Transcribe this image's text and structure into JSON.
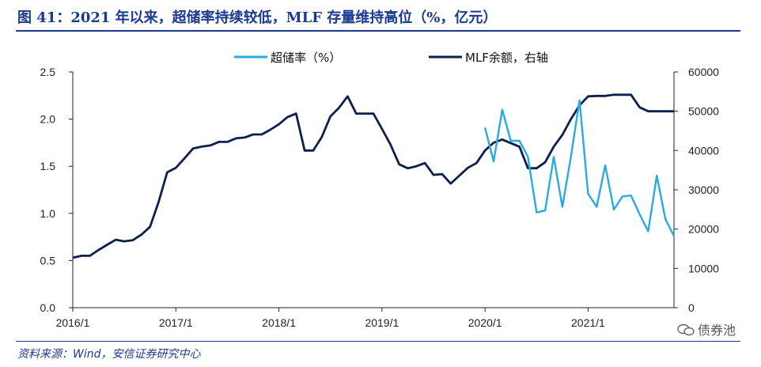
{
  "title": "图 41：2021 年以来，超储率持续较低，MLF 存量维持高位（%，亿元）",
  "source": "资料来源：Wind，安信证券研究中心",
  "watermark": "债券池",
  "colors": {
    "title": "#1a3a8f",
    "excess_reserve": "#29abe2",
    "mlf": "#0d1f4f",
    "axis": "#222222"
  },
  "chart_data": {
    "type": "line",
    "x_tick_labels": [
      "2016/1",
      "2017/1",
      "2018/1",
      "2019/1",
      "2020/1",
      "2021/1"
    ],
    "x_tick_months": [
      0,
      12,
      24,
      36,
      48,
      60
    ],
    "x_range_months": [
      0,
      70
    ],
    "y_left": {
      "min": 0,
      "max": 2.5,
      "ticks": [
        "0.0",
        "0.5",
        "1.0",
        "1.5",
        "2.0",
        "2.5"
      ]
    },
    "y_right": {
      "min": 0,
      "max": 60000,
      "ticks": [
        "0",
        "10000",
        "20000",
        "30000",
        "40000",
        "50000",
        "60000"
      ]
    },
    "legend_position": "top",
    "series": [
      {
        "name": "超储率（%）",
        "axis": "left",
        "points": [
          [
            48,
            1.91
          ],
          [
            49,
            1.55
          ],
          [
            50,
            2.1
          ],
          [
            51,
            1.77
          ],
          [
            52,
            1.77
          ],
          [
            53,
            1.6
          ],
          [
            54,
            1.01
          ],
          [
            55,
            1.03
          ],
          [
            56,
            1.6
          ],
          [
            57,
            1.07
          ],
          [
            58,
            1.6
          ],
          [
            59,
            2.2
          ],
          [
            60,
            1.21
          ],
          [
            61,
            1.07
          ],
          [
            62,
            1.51
          ],
          [
            63,
            1.04
          ],
          [
            64,
            1.18
          ],
          [
            65,
            1.19
          ],
          [
            66,
            0.99
          ],
          [
            67,
            0.81
          ],
          [
            68,
            1.4
          ],
          [
            69,
            0.94
          ],
          [
            70,
            0.76
          ]
        ]
      },
      {
        "name": "MLF余额，右轴",
        "axis": "right",
        "points": [
          [
            0,
            12700
          ],
          [
            1,
            13200
          ],
          [
            2,
            13200
          ],
          [
            3,
            14700
          ],
          [
            4,
            16000
          ],
          [
            5,
            17300
          ],
          [
            6,
            16900
          ],
          [
            7,
            17200
          ],
          [
            8,
            18600
          ],
          [
            9,
            20600
          ],
          [
            10,
            27000
          ],
          [
            11,
            34500
          ],
          [
            12,
            35600
          ],
          [
            13,
            38000
          ],
          [
            14,
            40500
          ],
          [
            15,
            41000
          ],
          [
            16,
            41300
          ],
          [
            17,
            42200
          ],
          [
            18,
            42200
          ],
          [
            19,
            43100
          ],
          [
            20,
            43300
          ],
          [
            21,
            44100
          ],
          [
            22,
            44100
          ],
          [
            23,
            45300
          ],
          [
            24,
            46700
          ],
          [
            25,
            48500
          ],
          [
            26,
            49400
          ],
          [
            27,
            40000
          ],
          [
            28,
            40000
          ],
          [
            29,
            43500
          ],
          [
            30,
            48700
          ],
          [
            31,
            50900
          ],
          [
            32,
            53800
          ],
          [
            33,
            49400
          ],
          [
            34,
            49400
          ],
          [
            35,
            49400
          ],
          [
            36,
            45500
          ],
          [
            37,
            41500
          ],
          [
            38,
            36500
          ],
          [
            39,
            35500
          ],
          [
            40,
            36000
          ],
          [
            41,
            36800
          ],
          [
            42,
            33800
          ],
          [
            43,
            34000
          ],
          [
            44,
            31600
          ],
          [
            45,
            33600
          ],
          [
            46,
            35600
          ],
          [
            47,
            36800
          ],
          [
            48,
            40000
          ],
          [
            49,
            42000
          ],
          [
            50,
            42800
          ],
          [
            51,
            41900
          ],
          [
            52,
            41000
          ],
          [
            53,
            35500
          ],
          [
            54,
            35500
          ],
          [
            55,
            37000
          ],
          [
            56,
            41000
          ],
          [
            57,
            44000
          ],
          [
            58,
            48000
          ],
          [
            59,
            51500
          ],
          [
            60,
            53800
          ],
          [
            61,
            53900
          ],
          [
            62,
            53900
          ],
          [
            63,
            54200
          ],
          [
            64,
            54200
          ],
          [
            65,
            54200
          ],
          [
            66,
            51000
          ],
          [
            67,
            50000
          ],
          [
            68,
            50000
          ],
          [
            69,
            50000
          ],
          [
            70,
            50000
          ]
        ]
      }
    ]
  }
}
